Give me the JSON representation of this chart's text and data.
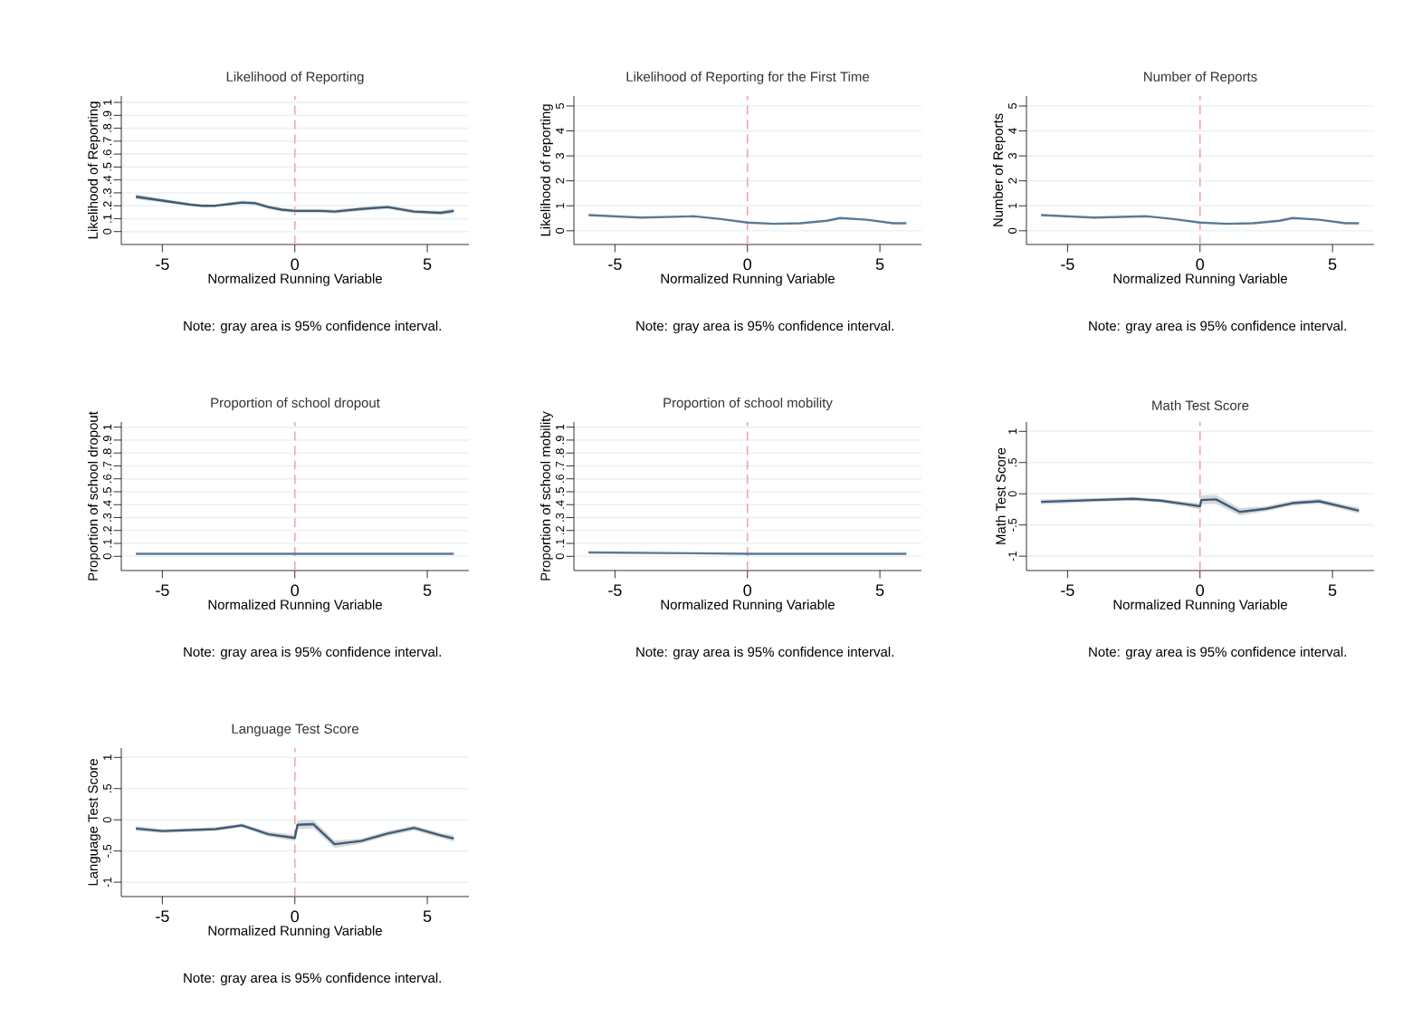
{
  "chart_data": [
    {
      "type": "line",
      "title": "Likelihood of Reporting",
      "xlabel": "Normalized Running Variable",
      "ylabel": "Likelihood of Reporting",
      "annotations": [
        "Note: gray area is 95% confidence interval."
      ],
      "xlim": [
        -6.55,
        6.57
      ],
      "xticks": [
        -5,
        0,
        5
      ],
      "ylim": [
        -0.1,
        1.05
      ],
      "yticks": [
        0,
        {
          "value": 0.1,
          "label": ".1"
        },
        {
          "value": 0.2,
          "label": ".2"
        },
        {
          "value": 0.3,
          "label": ".3"
        },
        {
          "value": 0.4,
          "label": ".4"
        },
        {
          "value": 0.5,
          "label": ".5"
        },
        {
          "value": 0.6,
          "label": ".6"
        },
        {
          "value": 0.7,
          "label": ".7"
        },
        {
          "value": 0.8,
          "label": ".8"
        },
        {
          "value": 0.9,
          "label": ".9"
        },
        1
      ],
      "grid": "y",
      "ref_lines": [
        {
          "axis": "x",
          "value": 0,
          "color": "#f4a3a3",
          "line_style": "dashed"
        }
      ],
      "series": [
        {
          "color": "#3e5c76",
          "x": [
            -6,
            -5,
            -4,
            -3.5,
            -3,
            -2,
            -1.5,
            -1,
            -0.5,
            0,
            1,
            1.5,
            2.5,
            3.5,
            4.5,
            5.5,
            6
          ],
          "values": [
            0.27,
            0.24,
            0.21,
            0.2,
            0.2,
            0.225,
            0.22,
            0.19,
            0.17,
            0.16,
            0.16,
            0.155,
            0.175,
            0.19,
            0.155,
            0.145,
            0.16
          ],
          "lower": [
            0.25,
            0.225,
            0.2,
            0.19,
            0.19,
            0.21,
            0.205,
            0.175,
            0.155,
            0.145,
            0.145,
            0.14,
            0.16,
            0.175,
            0.14,
            0.13,
            0.14
          ],
          "upper": [
            0.29,
            0.255,
            0.22,
            0.21,
            0.21,
            0.24,
            0.235,
            0.205,
            0.185,
            0.175,
            0.175,
            0.17,
            0.19,
            0.205,
            0.17,
            0.16,
            0.18
          ]
        }
      ]
    },
    {
      "type": "line",
      "title": "Likelihood of Reporting for the First Time",
      "xlabel": "Normalized Running Variable",
      "ylabel": "Likelihood of reporting",
      "annotations": [
        "Note: gray area is 95% confidence interval."
      ],
      "xlim": [
        -6.55,
        6.57
      ],
      "xticks": [
        -5,
        0,
        5
      ],
      "ylim": [
        -0.55,
        5.4
      ],
      "yticks": [
        0,
        1,
        2,
        3,
        4,
        5
      ],
      "grid": "y",
      "ref_lines": [
        {
          "axis": "x",
          "value": 0,
          "color": "#f4a3a3",
          "line_style": "dashed"
        }
      ],
      "series": [
        {
          "color": "#5c7a94",
          "x": [
            -6,
            -4,
            -2,
            -1,
            0,
            1,
            2,
            3,
            3.5,
            4.5,
            5.5,
            6
          ],
          "values": [
            0.63,
            0.53,
            0.58,
            0.47,
            0.33,
            0.28,
            0.3,
            0.4,
            0.51,
            0.44,
            0.3,
            0.3
          ]
        }
      ]
    },
    {
      "type": "line",
      "title": "Number of Reports",
      "xlabel": "Normalized Running Variable",
      "ylabel": "Number of Reports",
      "annotations": [
        "Note: gray area is 95% confidence interval."
      ],
      "xlim": [
        -6.55,
        6.57
      ],
      "xticks": [
        -5,
        0,
        5
      ],
      "ylim": [
        -0.55,
        5.4
      ],
      "yticks": [
        0,
        1,
        2,
        3,
        4,
        5
      ],
      "grid": "y",
      "ref_lines": [
        {
          "axis": "x",
          "value": 0,
          "color": "#f4a3a3",
          "line_style": "dashed"
        }
      ],
      "series": [
        {
          "color": "#5c7a94",
          "x": [
            -6,
            -4,
            -2,
            -1,
            0,
            1,
            2,
            3,
            3.5,
            4.5,
            5.5,
            6
          ],
          "values": [
            0.63,
            0.53,
            0.58,
            0.47,
            0.33,
            0.28,
            0.3,
            0.4,
            0.51,
            0.44,
            0.3,
            0.3
          ]
        }
      ]
    },
    {
      "type": "line",
      "title": "Proportion of school dropout",
      "xlabel": "Normalized Running Variable",
      "ylabel": "Proportion of school dropout",
      "annotations": [
        "Note: gray area is 95% confidence interval."
      ],
      "xlim": [
        -6.55,
        6.57
      ],
      "xticks": [
        -5,
        0,
        5
      ],
      "ylim": [
        -0.11,
        1.04
      ],
      "yticks": [
        0,
        {
          "value": 0.1,
          "label": ".1"
        },
        {
          "value": 0.2,
          "label": ".2"
        },
        {
          "value": 0.3,
          "label": ".3"
        },
        {
          "value": 0.4,
          "label": ".4"
        },
        {
          "value": 0.5,
          "label": ".5"
        },
        {
          "value": 0.6,
          "label": ".6"
        },
        {
          "value": 0.7,
          "label": ".7"
        },
        {
          "value": 0.8,
          "label": ".8"
        },
        {
          "value": 0.9,
          "label": ".9"
        },
        1
      ],
      "grid": "y",
      "ref_lines": [
        {
          "axis": "x",
          "value": 0,
          "color": "#f4a3a3",
          "line_style": "dashed"
        }
      ],
      "series": [
        {
          "color": "#5c7a94",
          "x": [
            -6,
            0,
            6
          ],
          "values": [
            0.02,
            0.02,
            0.02
          ]
        }
      ]
    },
    {
      "type": "line",
      "title": "Proportion of school mobility",
      "xlabel": "Normalized Running Variable",
      "ylabel": "Proportion of school mobility",
      "annotations": [
        "Note: gray area is 95% confidence interval."
      ],
      "xlim": [
        -6.55,
        6.57
      ],
      "xticks": [
        -5,
        0,
        5
      ],
      "ylim": [
        -0.11,
        1.04
      ],
      "yticks": [
        0,
        {
          "value": 0.1,
          "label": ".1"
        },
        {
          "value": 0.2,
          "label": ".2"
        },
        {
          "value": 0.3,
          "label": ".3"
        },
        {
          "value": 0.4,
          "label": ".4"
        },
        {
          "value": 0.5,
          "label": ".5"
        },
        {
          "value": 0.6,
          "label": ".6"
        },
        {
          "value": 0.7,
          "label": ".7"
        },
        {
          "value": 0.8,
          "label": ".8"
        },
        {
          "value": 0.9,
          "label": ".9"
        },
        1
      ],
      "grid": "y",
      "ref_lines": [
        {
          "axis": "x",
          "value": 0,
          "color": "#f4a3a3",
          "line_style": "dashed"
        }
      ],
      "series": [
        {
          "color": "#5c7a94",
          "x": [
            -6,
            0,
            6
          ],
          "values": [
            0.03,
            0.02,
            0.02
          ]
        }
      ]
    },
    {
      "type": "line",
      "title": "Math Test Score",
      "xlabel": "Normalized Running Variable",
      "ylabel": "Math Test Score",
      "annotations": [
        "Note: gray area is 95% confidence interval."
      ],
      "xlim": [
        -6.55,
        6.57
      ],
      "xticks": [
        -5,
        0,
        5
      ],
      "ylim": [
        -1.23,
        1.15
      ],
      "yticks": [
        -1,
        {
          "value": -0.5,
          "label": "-.5"
        },
        0,
        {
          "value": 0.5,
          "label": ".5"
        },
        1
      ],
      "grid": "y",
      "ref_lines": [
        {
          "axis": "x",
          "value": 0,
          "color": "#f4a3a3",
          "line_style": "dashed"
        }
      ],
      "series": [
        {
          "color": "#3e5c76",
          "x": [
            -6,
            -4,
            -2.5,
            -1.5,
            -0.5,
            0,
            0.05,
            0.6,
            1.5,
            2.5,
            3.5,
            4.5,
            5.5,
            6
          ],
          "values": [
            -0.13,
            -0.1,
            -0.08,
            -0.11,
            -0.17,
            -0.2,
            -0.1,
            -0.09,
            -0.29,
            -0.24,
            -0.15,
            -0.12,
            -0.22,
            -0.27
          ],
          "lower": [
            -0.17,
            -0.13,
            -0.11,
            -0.14,
            -0.21,
            -0.25,
            -0.17,
            -0.16,
            -0.35,
            -0.28,
            -0.19,
            -0.16,
            -0.26,
            -0.32
          ],
          "upper": [
            -0.09,
            -0.07,
            -0.05,
            -0.08,
            -0.13,
            -0.15,
            -0.03,
            -0.02,
            -0.23,
            -0.2,
            -0.11,
            -0.08,
            -0.18,
            -0.22
          ]
        }
      ]
    },
    {
      "type": "line",
      "title": "Language Test Score",
      "xlabel": "Normalized Running Variable",
      "ylabel": "Language Test Score",
      "annotations": [
        "Note: gray area is 95% confidence interval."
      ],
      "xlim": [
        -6.55,
        6.57
      ],
      "xticks": [
        -5,
        0,
        5
      ],
      "ylim": [
        -1.23,
        1.15
      ],
      "yticks": [
        -1,
        {
          "value": -0.5,
          "label": "-.5"
        },
        0,
        {
          "value": 0.5,
          "label": ".5"
        },
        1
      ],
      "grid": "y",
      "ref_lines": [
        {
          "axis": "x",
          "value": 0,
          "color": "#f4a3a3",
          "line_style": "dashed"
        }
      ],
      "series": [
        {
          "color": "#3e5c76",
          "x": [
            -6,
            -5,
            -3,
            -2,
            -1,
            0,
            0.1,
            0.7,
            1.5,
            2.5,
            3.5,
            4.5,
            5.5,
            6
          ],
          "values": [
            -0.14,
            -0.18,
            -0.15,
            -0.09,
            -0.23,
            -0.29,
            -0.08,
            -0.07,
            -0.39,
            -0.34,
            -0.22,
            -0.13,
            -0.25,
            -0.3
          ],
          "lower": [
            -0.18,
            -0.21,
            -0.18,
            -0.12,
            -0.27,
            -0.34,
            -0.15,
            -0.14,
            -0.45,
            -0.38,
            -0.26,
            -0.17,
            -0.29,
            -0.35
          ],
          "upper": [
            -0.1,
            -0.15,
            -0.12,
            -0.06,
            -0.19,
            -0.24,
            -0.01,
            0.0,
            -0.33,
            -0.3,
            -0.18,
            -0.09,
            -0.21,
            -0.25
          ]
        }
      ]
    }
  ]
}
